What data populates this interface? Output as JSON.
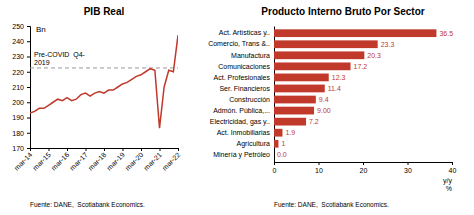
{
  "chart_data": [
    {
      "type": "line",
      "title": "PIB Real",
      "ylabel": "Bn",
      "source": "Fuente: DANE,  Scotiabank Economics.",
      "color": "#c0392b",
      "x": [
        0,
        1,
        2,
        3,
        4,
        5,
        6,
        7,
        8,
        9,
        10,
        11,
        12,
        13,
        14,
        15,
        16,
        17,
        18,
        19,
        20,
        21,
        22,
        23,
        24,
        25,
        26,
        27,
        28,
        29,
        30,
        31,
        32
      ],
      "values": [
        193,
        194,
        196,
        196,
        198,
        200,
        202,
        201,
        203,
        201,
        202,
        205,
        206,
        204,
        206,
        207,
        206,
        208,
        208,
        210,
        212,
        213,
        215,
        217,
        218,
        220,
        222,
        221,
        183,
        210,
        221,
        220,
        244
      ],
      "xlim": [
        0,
        32
      ],
      "xticks": [
        {
          "value": 0,
          "label": "mar-14"
        },
        {
          "value": 4,
          "label": "mar-15"
        },
        {
          "value": 8,
          "label": "mar-16"
        },
        {
          "value": 12,
          "label": "mar-17"
        },
        {
          "value": 16,
          "label": "mar-18"
        },
        {
          "value": 20,
          "label": "mar-19"
        },
        {
          "value": 24,
          "label": "mar-20"
        },
        {
          "value": 28,
          "label": "mar-21"
        },
        {
          "value": 32,
          "label": "mar-22"
        }
      ],
      "ylim": [
        170,
        250
      ],
      "yticks": [
        170,
        180,
        190,
        200,
        210,
        220,
        230,
        240,
        250
      ],
      "hline": {
        "value": 222.5,
        "label": "Pre-COVID  Q4-\n2019",
        "color": "#999999",
        "line_style": "dashed"
      },
      "grid": false
    },
    {
      "type": "bar",
      "orientation": "horizontal",
      "title": "Producto Interno Bruto Por Sector",
      "xlabel": "y/y\n%",
      "source": "Fuente: DANE,  Scotiabank Economics.",
      "color": "#c0392b",
      "categories": [
        "Minería y Petróleo",
        "Agricultura",
        "Act. Inmobiliarias",
        "Electricidad, gas y..",
        "Admón. Pública,...",
        "Construcción",
        "Ser. Financieros",
        "Act. Profesionales",
        "Comunicaciones",
        "Manufactura",
        "Comercio, Trans &..",
        "Act. Artísticas y.."
      ],
      "values": [
        0.0,
        1.0,
        1.9,
        7.2,
        9.0,
        9.4,
        11.4,
        12.3,
        17.2,
        20.3,
        23.3,
        36.5
      ],
      "value_labels": [
        "0.0",
        "1",
        "1.9",
        "7.2",
        "9.00",
        "9.4",
        "11.4",
        "12.3",
        "17.2",
        "20.3",
        "23.3",
        "36.5"
      ],
      "data_labels": true,
      "xlim": [
        0,
        40
      ],
      "xticks": [
        0,
        10,
        20,
        30,
        40
      ],
      "grid": false
    }
  ]
}
